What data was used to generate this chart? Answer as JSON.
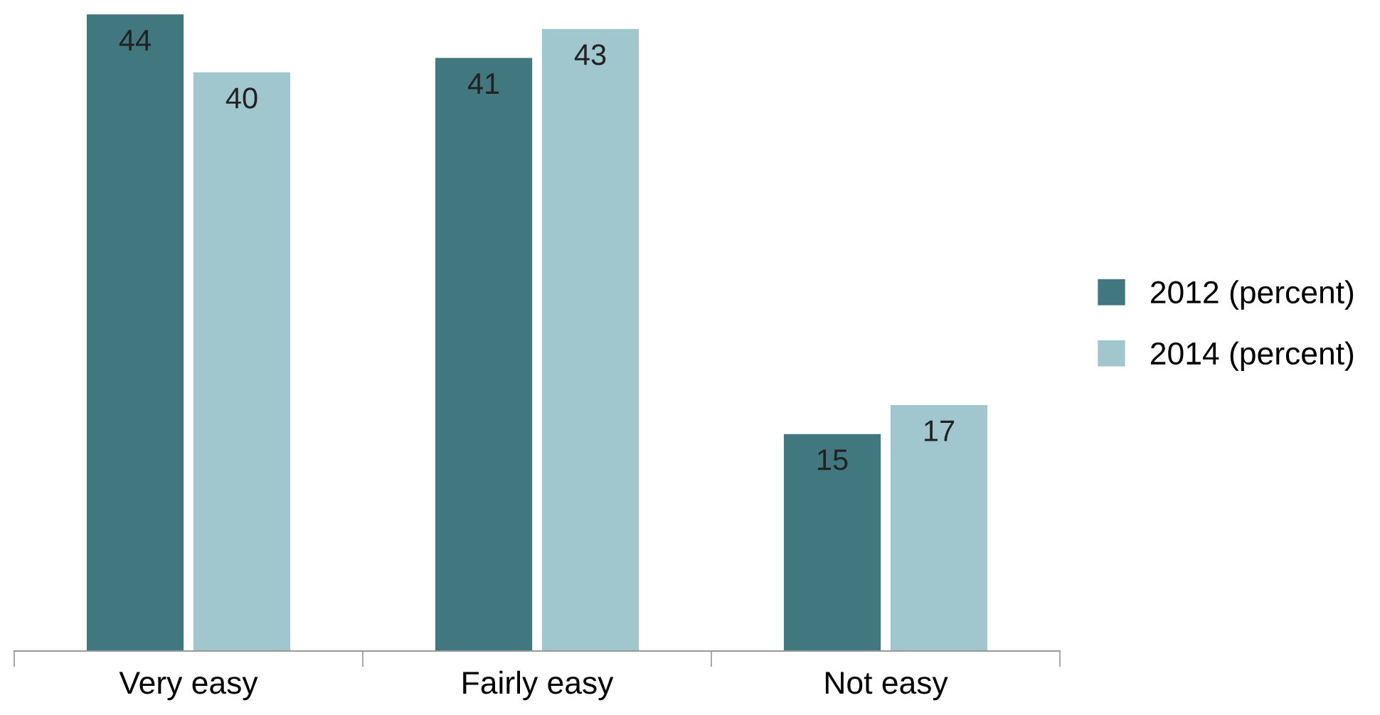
{
  "chart_data": {
    "type": "bar",
    "categories": [
      "Very easy",
      "Fairly easy",
      "Not easy"
    ],
    "series": [
      {
        "name": "2012 (percent)",
        "color": "#41777f",
        "values": [
          44,
          41,
          15
        ]
      },
      {
        "name": "2014 (percent)",
        "color": "#9fc7cd",
        "values": [
          40,
          43,
          17
        ]
      }
    ],
    "data_labels": true,
    "legend": "right",
    "grid": false
  }
}
